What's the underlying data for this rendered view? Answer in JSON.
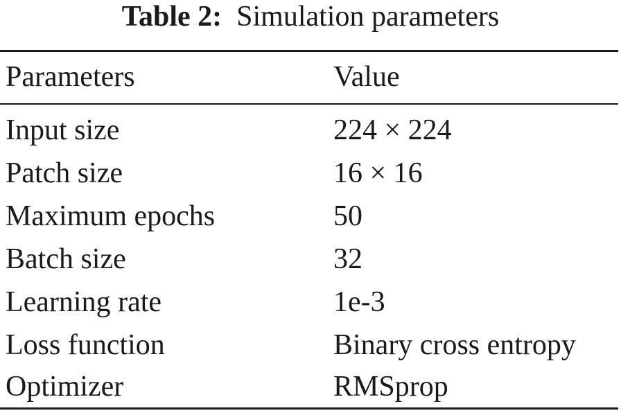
{
  "caption": {
    "label": "Table 2:",
    "title": "Simulation parameters"
  },
  "table": {
    "headers": {
      "param": "Parameters",
      "value": "Value"
    },
    "rows": [
      {
        "param": "Input size",
        "value": "224 × 224"
      },
      {
        "param": "Patch size",
        "value": "16 × 16"
      },
      {
        "param": "Maximum epochs",
        "value": "50"
      },
      {
        "param": "Batch size",
        "value": "32"
      },
      {
        "param": "Learning rate",
        "value": "1e-3"
      },
      {
        "param": "Loss function",
        "value": "Binary cross entropy"
      },
      {
        "param": "Optimizer",
        "value": "RMSprop"
      }
    ]
  }
}
